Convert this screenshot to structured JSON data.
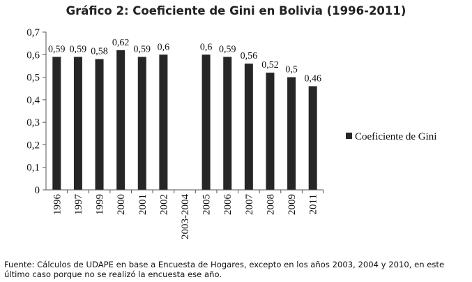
{
  "chart_data": {
    "type": "bar",
    "title": "Gráfico 2: Coeficiente de Gini en Bolivia (1996-2011)",
    "categories": [
      "1996",
      "1997",
      "1999",
      "2000",
      "2001",
      "2002",
      "2003-2004",
      "2005",
      "2006",
      "2007",
      "2008",
      "2009",
      "2011"
    ],
    "series": [
      {
        "name": "Coeficiente de Gini",
        "values": [
          0.59,
          0.59,
          0.58,
          0.62,
          0.59,
          0.6,
          null,
          0.6,
          0.59,
          0.56,
          0.52,
          0.5,
          0.46
        ],
        "labels": [
          "0,59",
          "0,59",
          "0,58",
          "0,62",
          "0,59",
          "0,6",
          "",
          "0,6",
          "0,59",
          "0,56",
          "0,52",
          "0,5",
          "0,46"
        ],
        "color": "#262626"
      }
    ],
    "yticks": [
      0,
      0.1,
      0.2,
      0.3,
      0.4,
      0.5,
      0.6,
      0.7
    ],
    "ytick_labels": [
      "0",
      "0,1",
      "0,2",
      "0,3",
      "0,4",
      "0,5",
      "0,6",
      "0,7"
    ],
    "ylim": [
      0,
      0.7
    ],
    "xlabel": "",
    "ylabel": "",
    "grid": false,
    "legend_position": "right"
  },
  "source_note": "Fuente: Cálculos de UDAPE en base a Encuesta de Hogares, excepto en los años 2003, 2004 y 2010, en este último caso porque no se realizó la encuesta ese año."
}
